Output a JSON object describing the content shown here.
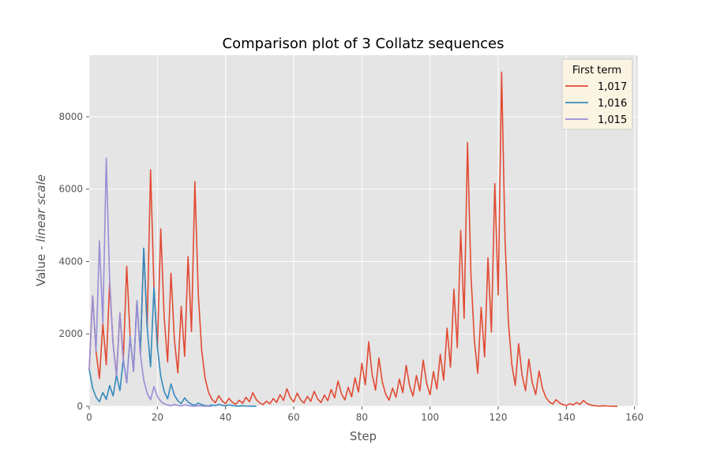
{
  "chart_data": {
    "type": "line",
    "title": "Comparison plot of 3 Collatz sequences",
    "xlabel": "Step",
    "ylabel_prefix": "Value - ",
    "ylabel_italic": "linear scale",
    "xlim": [
      0,
      161
    ],
    "ylim": [
      0,
      9700
    ],
    "x_ticks": [
      0,
      20,
      40,
      60,
      80,
      100,
      120,
      140,
      160
    ],
    "y_ticks": [
      0,
      2000,
      4000,
      6000,
      8000
    ],
    "grid": true,
    "legend": {
      "title": "First term",
      "placement": "top-right"
    },
    "series": [
      {
        "name": "1,017",
        "color": "#E24A33",
        "start": 1017
      },
      {
        "name": "1,016",
        "color": "#348ABD",
        "start": 1016
      },
      {
        "name": "1,015",
        "color": "#988ED5",
        "start": 1015
      }
    ]
  }
}
